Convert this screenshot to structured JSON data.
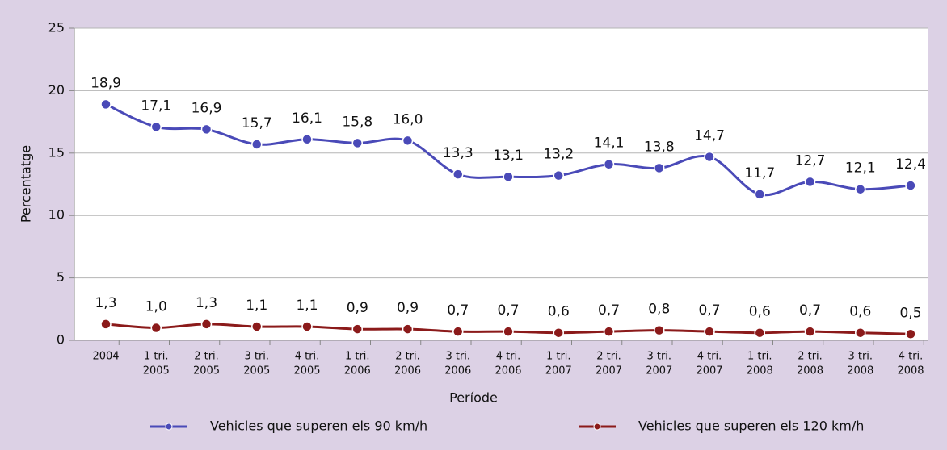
{
  "chart_data": {
    "type": "line",
    "x_label": "Període",
    "y_label": "Percentatge",
    "categories": [
      [
        "2004"
      ],
      [
        "1 tri.",
        "2005"
      ],
      [
        "2 tri.",
        "2005"
      ],
      [
        "3 tri.",
        "2005"
      ],
      [
        "4 tri.",
        "2005"
      ],
      [
        "1 tri.",
        "2006"
      ],
      [
        "2 tri.",
        "2006"
      ],
      [
        "3 tri.",
        "2006"
      ],
      [
        "4 tri.",
        "2006"
      ],
      [
        "1 tri.",
        "2007"
      ],
      [
        "2 tri.",
        "2007"
      ],
      [
        "3 tri.",
        "2007"
      ],
      [
        "4 tri.",
        "2007"
      ],
      [
        "1 tri.",
        "2008"
      ],
      [
        "2 tri.",
        "2008"
      ],
      [
        "3 tri.",
        "2008"
      ],
      [
        "4 tri.",
        "2008"
      ]
    ],
    "series": [
      {
        "name": "Vehicles que superen els 90 km/h",
        "color": "#4a4ab8",
        "values": [
          18.9,
          17.1,
          16.9,
          15.7,
          16.1,
          15.8,
          16.0,
          13.3,
          13.1,
          13.2,
          14.1,
          13.8,
          14.7,
          11.7,
          12.7,
          12.1,
          12.4
        ],
        "value_labels": [
          "18,9",
          "17,1",
          "16,9",
          "15,7",
          "16,1",
          "15,8",
          "16,0",
          "13,3",
          "13,1",
          "13,2",
          "14,1",
          "13,8",
          "14,7",
          "11,7",
          "12,7",
          "12,1",
          "12,4"
        ]
      },
      {
        "name": "Vehicles que superen els 120 km/h",
        "color": "#8b1a1a",
        "values": [
          1.3,
          1.0,
          1.3,
          1.1,
          1.1,
          0.9,
          0.9,
          0.7,
          0.7,
          0.6,
          0.7,
          0.8,
          0.7,
          0.6,
          0.7,
          0.6,
          0.5
        ],
        "value_labels": [
          "1,3",
          "1,0",
          "1,3",
          "1,1",
          "1,1",
          "0,9",
          "0,9",
          "0,7",
          "0,7",
          "0,6",
          "0,7",
          "0,8",
          "0,7",
          "0,6",
          "0,7",
          "0,6",
          "0,5"
        ]
      }
    ],
    "ylim": [
      0,
      25
    ],
    "yticks": [
      0,
      5,
      10,
      15,
      20,
      25
    ],
    "grid": true,
    "legend": "bottom"
  }
}
